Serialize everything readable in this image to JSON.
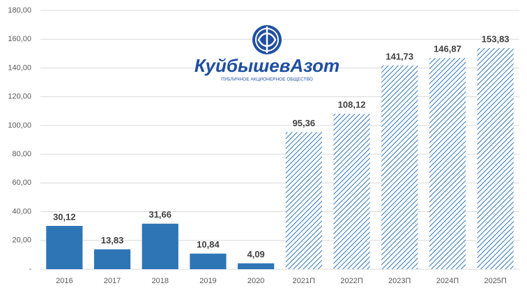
{
  "chart_data": {
    "type": "bar",
    "logo_title": "КуйбышевАзот",
    "logo_subtitle": "ПУБЛИЧНОЕ АКЦИОНЕРНОЕ ОБЩЕСТВО",
    "categories": [
      "2016",
      "2017",
      "2018",
      "2019",
      "2020",
      "2021П",
      "2022П",
      "2023П",
      "2024П",
      "2025П"
    ],
    "values": [
      30.12,
      13.83,
      31.66,
      10.84,
      4.09,
      95.36,
      108.12,
      141.73,
      146.87,
      153.83
    ],
    "value_labels": [
      "30,12",
      "13,83",
      "31,66",
      "10,84",
      "4,09",
      "95,36",
      "108,12",
      "141,73",
      "146,87",
      "153,83"
    ],
    "bar_styles": [
      "solid",
      "solid",
      "solid",
      "solid",
      "solid",
      "hatched",
      "hatched",
      "hatched",
      "hatched",
      "hatched"
    ],
    "color": "#2e75b6",
    "ylim": [
      0,
      180
    ],
    "yticks": [
      {
        "value": 0,
        "label": "-"
      },
      {
        "value": 20,
        "label": "20,00"
      },
      {
        "value": 40,
        "label": "40,00"
      },
      {
        "value": 60,
        "label": "60,00"
      },
      {
        "value": 80,
        "label": "80,00"
      },
      {
        "value": 100,
        "label": "100,00"
      },
      {
        "value": 120,
        "label": "120,00"
      },
      {
        "value": 140,
        "label": "140,00"
      },
      {
        "value": 160,
        "label": "160,00"
      },
      {
        "value": 180,
        "label": "180,00"
      }
    ],
    "grid": true
  }
}
